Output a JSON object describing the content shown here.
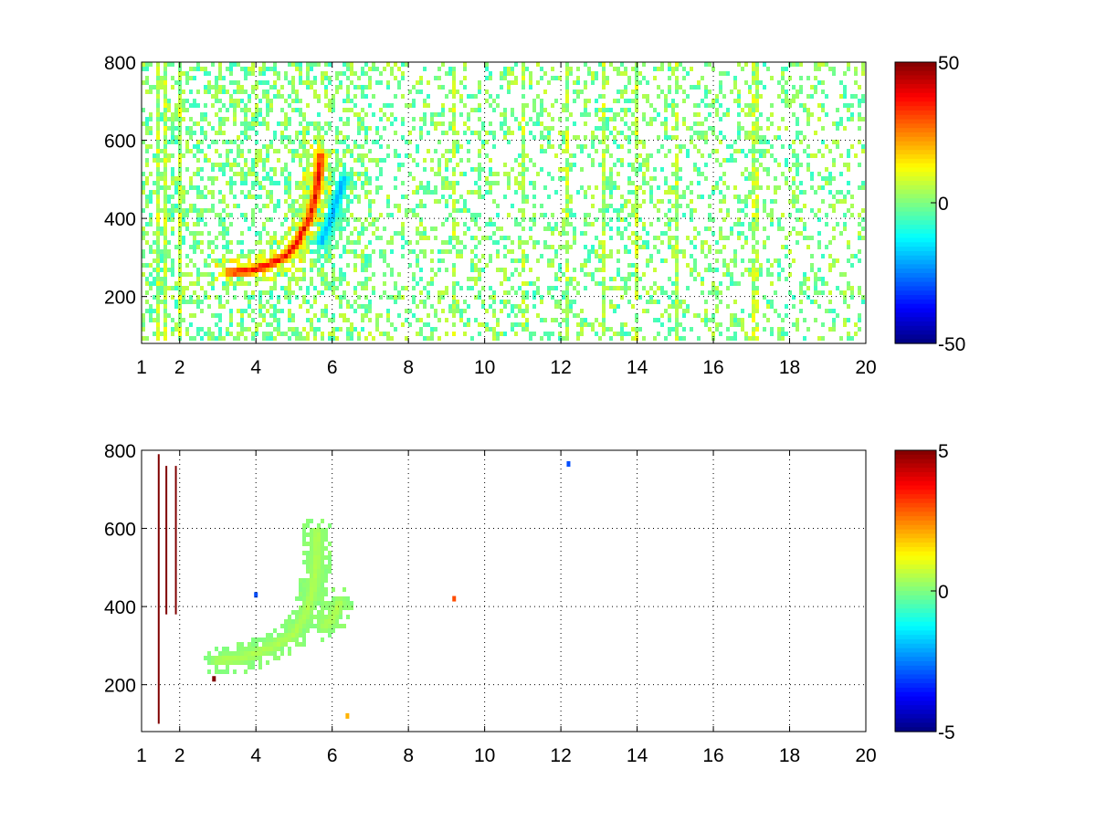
{
  "chart_data": [
    {
      "type": "heatmap",
      "title": "",
      "xlabel": "",
      "ylabel": "",
      "xlim": [
        1,
        20
      ],
      "ylim": [
        80,
        800
      ],
      "x_ticks": [
        1,
        2,
        4,
        6,
        8,
        10,
        12,
        14,
        16,
        18,
        20
      ],
      "y_ticks": [
        200,
        400,
        600,
        800
      ],
      "grid": true,
      "grid_style": "dotted",
      "colormap": "jet",
      "colorbar": {
        "clim": [
          -50,
          50
        ],
        "ticks": [
          50,
          0,
          -50
        ]
      },
      "features": [
        {
          "kind": "curved-band",
          "sign": "positive",
          "peak": 45,
          "points": [
            [
              3.3,
              262
            ],
            [
              3.8,
              265
            ],
            [
              4.3,
              280
            ],
            [
              4.8,
              305
            ],
            [
              5.1,
              340
            ],
            [
              5.4,
              400
            ],
            [
              5.6,
              470
            ],
            [
              5.7,
              560
            ]
          ]
        },
        {
          "kind": "curved-band",
          "sign": "negative",
          "peak": -25,
          "points": [
            [
              5.7,
              340
            ],
            [
              5.9,
              380
            ],
            [
              6.1,
              440
            ],
            [
              6.3,
              500
            ]
          ]
        }
      ],
      "vertical_stripes_x": [
        1.4,
        1.6,
        2.0,
        9.2,
        11.0,
        12.2,
        13.1,
        14.0,
        15.0,
        17.1
      ],
      "noise": {
        "density": 0.28,
        "amplitude": 8
      }
    },
    {
      "type": "heatmap",
      "title": "",
      "xlabel": "",
      "ylabel": "",
      "xlim": [
        1,
        20
      ],
      "ylim": [
        80,
        800
      ],
      "x_ticks": [
        1,
        2,
        4,
        6,
        8,
        10,
        12,
        14,
        16,
        18,
        20
      ],
      "y_ticks": [
        200,
        400,
        600,
        800
      ],
      "grid": true,
      "grid_style": "dotted",
      "colormap": "jet",
      "colorbar": {
        "clim": [
          -5,
          5
        ],
        "ticks": [
          5,
          0,
          -5
        ]
      },
      "features": [
        {
          "kind": "curved-band",
          "sign": "positive",
          "peak": 0.6,
          "points": [
            [
              3.0,
              262
            ],
            [
              3.5,
              265
            ],
            [
              4.0,
              280
            ],
            [
              4.5,
              300
            ],
            [
              5.0,
              330
            ],
            [
              5.3,
              380
            ],
            [
              5.5,
              440
            ],
            [
              5.6,
              520
            ],
            [
              5.6,
              590
            ]
          ]
        },
        {
          "kind": "curved-band",
          "sign": "positive",
          "peak": 0.6,
          "points": [
            [
              5.8,
              350
            ],
            [
              6.0,
              370
            ],
            [
              6.2,
              410
            ]
          ]
        }
      ],
      "vertical_lines": [
        {
          "x": 1.45,
          "y0": 100,
          "y1": 790,
          "value": 5
        },
        {
          "x": 1.65,
          "y0": 380,
          "y1": 760,
          "value": 5
        },
        {
          "x": 1.9,
          "y0": 380,
          "y1": 760,
          "value": 5
        }
      ],
      "spots": [
        {
          "x": 12.2,
          "y": 765,
          "value": -3
        },
        {
          "x": 9.2,
          "y": 420,
          "value": 3
        },
        {
          "x": 6.4,
          "y": 120,
          "value": 2
        },
        {
          "x": 4.0,
          "y": 430,
          "value": -3
        },
        {
          "x": 2.9,
          "y": 215,
          "value": 5
        }
      ]
    }
  ]
}
